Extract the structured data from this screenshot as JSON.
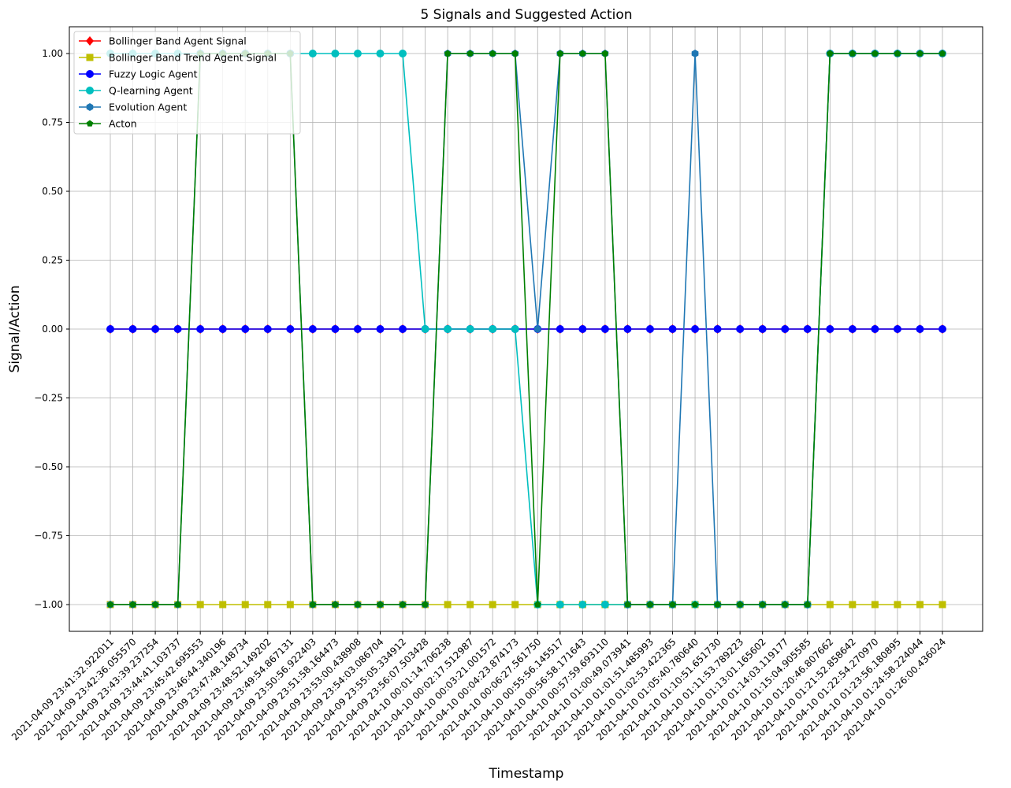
{
  "chart_data": {
    "type": "line",
    "title": "5 Signals and Suggested Action",
    "xlabel": "Timestamp",
    "ylabel": "Signal/Action",
    "ylim": [
      -1.1,
      1.1
    ],
    "yticks": [
      "1.00",
      "0.75",
      "0.50",
      "0.25",
      "0.00",
      "−0.25",
      "−0.50",
      "−0.75",
      "−1.00"
    ],
    "ytick_values": [
      1.0,
      0.75,
      0.5,
      0.25,
      0.0,
      -0.25,
      -0.5,
      -0.75,
      -1.0
    ],
    "grid": true,
    "legend_position": "top-left",
    "x": [
      "2021-04-09 23:41:32.922011",
      "2021-04-09 23:42:36.055570",
      "2021-04-09 23:43:39.237254",
      "2021-04-09 23:44:41.103737",
      "2021-04-09 23:45:42.695553",
      "2021-04-09 23:46:44.340196",
      "2021-04-09 23:47:48.148734",
      "2021-04-09 23:48:52.149202",
      "2021-04-09 23:49:54.867131",
      "2021-04-09 23:50:56.922403",
      "2021-04-09 23:51:58.164473",
      "2021-04-09 23:53:00.438908",
      "2021-04-09 23:54:03.086704",
      "2021-04-09 23:55:05.334912",
      "2021-04-09 23:56:07.503428",
      "2021-04-10 00:01:14.706238",
      "2021-04-10 00:02:17.512987",
      "2021-04-10 00:03:21.001572",
      "2021-04-10 00:04:23.874173",
      "2021-04-10 00:06:27.561750",
      "2021-04-10 00:55:56.145517",
      "2021-04-10 00:56:58.171643",
      "2021-04-10 00:57:59.693110",
      "2021-04-10 01:00:49.073941",
      "2021-04-10 01:01:51.485993",
      "2021-04-10 01:02:53.422365",
      "2021-04-10 01:05:40.780640",
      "2021-04-10 01:10:51.651730",
      "2021-04-10 01:11:53.789223",
      "2021-04-10 01:13:01.165602",
      "2021-04-10 01:14:03.119177",
      "2021-04-10 01:15:04.905585",
      "2021-04-10 01:20:46.807662",
      "2021-04-10 01:21:52.858642",
      "2021-04-10 01:22:54.270970",
      "2021-04-10 01:23:56.180895",
      "2021-04-10 01:24:58.224044",
      "2021-04-10 01:26:00.436024"
    ],
    "series": [
      {
        "name": "Bollinger Band Agent Signal",
        "color": "#ff0000",
        "marker": "diamond",
        "values": [
          0,
          0,
          0,
          0,
          0,
          0,
          0,
          0,
          0,
          0,
          0,
          0,
          0,
          0,
          0,
          0,
          0,
          0,
          0,
          0,
          0,
          0,
          0,
          0,
          0,
          0,
          0,
          0,
          0,
          0,
          0,
          0,
          0,
          0,
          0,
          0,
          0,
          0
        ]
      },
      {
        "name": "Bollinger Band Trend Agent Signal",
        "color": "#bfbf00",
        "marker": "square",
        "values": [
          -1,
          -1,
          -1,
          -1,
          -1,
          -1,
          -1,
          -1,
          -1,
          -1,
          -1,
          -1,
          -1,
          -1,
          -1,
          -1,
          -1,
          -1,
          -1,
          -1,
          -1,
          -1,
          -1,
          -1,
          -1,
          -1,
          -1,
          -1,
          -1,
          -1,
          -1,
          -1,
          -1,
          -1,
          -1,
          -1,
          -1,
          -1
        ]
      },
      {
        "name": "Fuzzy Logic Agent",
        "color": "#0000ff",
        "marker": "circle",
        "values": [
          0,
          0,
          0,
          0,
          0,
          0,
          0,
          0,
          0,
          0,
          0,
          0,
          0,
          0,
          0,
          0,
          0,
          0,
          0,
          0,
          0,
          0,
          0,
          0,
          0,
          0,
          0,
          0,
          0,
          0,
          0,
          0,
          0,
          0,
          0,
          0,
          0,
          0
        ]
      },
      {
        "name": "Q-learning Agent",
        "color": "#00bfbf",
        "marker": "circle",
        "values": [
          1,
          1,
          1,
          1,
          1,
          1,
          1,
          1,
          1,
          1,
          1,
          1,
          1,
          1,
          0,
          0,
          0,
          0,
          0,
          -1,
          -1,
          -1,
          -1,
          -1,
          -1,
          -1,
          -1,
          -1,
          -1,
          -1,
          -1,
          -1,
          1,
          1,
          1,
          1,
          1,
          1
        ]
      },
      {
        "name": "Evolution Agent",
        "color": "#1f77b4",
        "marker": "hexagon",
        "values": [
          -1,
          -1,
          -1,
          -1,
          1,
          1,
          1,
          1,
          1,
          -1,
          -1,
          -1,
          -1,
          -1,
          -1,
          1,
          1,
          1,
          1,
          0,
          1,
          1,
          1,
          -1,
          -1,
          -1,
          1,
          -1,
          -1,
          -1,
          -1,
          -1,
          1,
          1,
          1,
          1,
          1,
          1
        ]
      },
      {
        "name": "Acton",
        "color": "#008000",
        "marker": "pentagon",
        "values": [
          -1,
          -1,
          -1,
          -1,
          1,
          1,
          1,
          1,
          1,
          -1,
          -1,
          -1,
          -1,
          -1,
          -1,
          1,
          1,
          1,
          1,
          -1,
          1,
          1,
          1,
          -1,
          -1,
          -1,
          -1,
          -1,
          -1,
          -1,
          -1,
          -1,
          1,
          1,
          1,
          1,
          1,
          1
        ]
      }
    ]
  }
}
